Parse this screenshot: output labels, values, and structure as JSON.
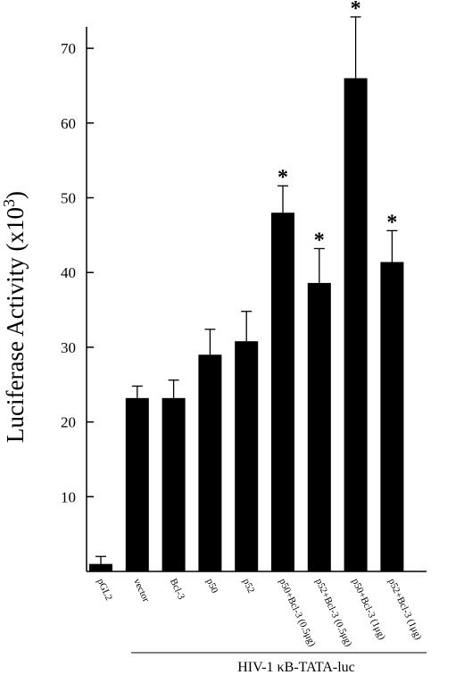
{
  "chart_data": {
    "type": "bar",
    "categories": [
      "pGL2",
      "vector",
      "Bcl-3",
      "p50",
      "p52",
      "p50+Bcl-3 (0.5μg)",
      "p52+Bcl-3 (0.5μg)",
      "p50+Bcl-3 (1μg)",
      "p52+Bcl-3 (1μg)"
    ],
    "values": [
      1.0,
      23.2,
      23.2,
      29.0,
      30.8,
      48.0,
      38.6,
      66.0,
      41.4
    ],
    "errors": [
      1.0,
      1.6,
      2.4,
      3.4,
      4.0,
      3.6,
      4.6,
      8.2,
      4.2
    ],
    "significant": [
      false,
      false,
      false,
      false,
      false,
      true,
      true,
      true,
      true
    ],
    "significance_marker": "*",
    "ylabel_main": "Luciferase Activity (x10",
    "ylabel_exp": "3",
    "ylabel_close": ")",
    "group_label": "HIV-1 κB-TATA-luc",
    "group_start_index": 1,
    "ylim": [
      0,
      70
    ],
    "yticks": [
      10,
      20,
      30,
      40,
      50,
      60,
      70
    ],
    "bar_color": "#000000",
    "grid": false
  }
}
